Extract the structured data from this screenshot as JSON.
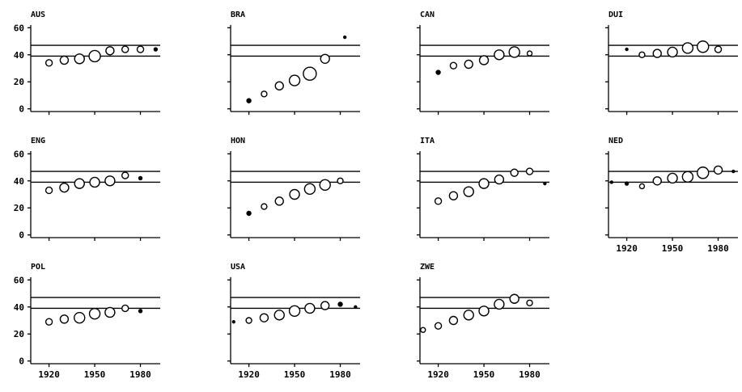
{
  "chart_data": {
    "type": "scatter",
    "description_style": "small multiples, bubble sizes vary, two horizontal reference lines per panel",
    "xlim": [
      1908,
      1993
    ],
    "ylim": [
      -2,
      62
    ],
    "x_ticks": [
      1920,
      1950,
      1980
    ],
    "x_tick_labels": [
      "1920",
      "1950",
      "1980"
    ],
    "y_ticks": [
      0,
      20,
      40,
      60
    ],
    "y_tick_labels": [
      "0",
      "20",
      "40",
      "60"
    ],
    "reference_lines": [
      47,
      39
    ],
    "grid": false,
    "legend": "none",
    "panels": [
      {
        "title": "AUS",
        "points": [
          {
            "x": 1920,
            "y": 34,
            "s": 4
          },
          {
            "x": 1930,
            "y": 36,
            "s": 5
          },
          {
            "x": 1940,
            "y": 37,
            "s": 6
          },
          {
            "x": 1950,
            "y": 39,
            "s": 7
          },
          {
            "x": 1960,
            "y": 43,
            "s": 5
          },
          {
            "x": 1970,
            "y": 44,
            "s": 4
          },
          {
            "x": 1980,
            "y": 44,
            "s": 4
          },
          {
            "x": 1990,
            "y": 44,
            "s": 2
          }
        ]
      },
      {
        "title": "BRA",
        "points": [
          {
            "x": 1920,
            "y": 6,
            "s": 2.5
          },
          {
            "x": 1930,
            "y": 11,
            "s": 3.5
          },
          {
            "x": 1940,
            "y": 17,
            "s": 5
          },
          {
            "x": 1950,
            "y": 21,
            "s": 6.5
          },
          {
            "x": 1960,
            "y": 26,
            "s": 8
          },
          {
            "x": 1970,
            "y": 37,
            "s": 5.5
          },
          {
            "x": 1983,
            "y": 53,
            "s": 1.5
          }
        ]
      },
      {
        "title": "CAN",
        "points": [
          {
            "x": 1920,
            "y": 27,
            "s": 2.5
          },
          {
            "x": 1930,
            "y": 32,
            "s": 4
          },
          {
            "x": 1940,
            "y": 33,
            "s": 5
          },
          {
            "x": 1950,
            "y": 36,
            "s": 5.5
          },
          {
            "x": 1960,
            "y": 40,
            "s": 6
          },
          {
            "x": 1970,
            "y": 42,
            "s": 6.5
          },
          {
            "x": 1980,
            "y": 41,
            "s": 3
          }
        ]
      },
      {
        "title": "DUI",
        "points": [
          {
            "x": 1920,
            "y": 44,
            "s": 1.5
          },
          {
            "x": 1930,
            "y": 40,
            "s": 3.5
          },
          {
            "x": 1940,
            "y": 41,
            "s": 5
          },
          {
            "x": 1950,
            "y": 42,
            "s": 6
          },
          {
            "x": 1960,
            "y": 45,
            "s": 6.5
          },
          {
            "x": 1970,
            "y": 46,
            "s": 7
          },
          {
            "x": 1980,
            "y": 44,
            "s": 4
          }
        ]
      },
      {
        "title": "ENG",
        "points": [
          {
            "x": 1920,
            "y": 33,
            "s": 4
          },
          {
            "x": 1930,
            "y": 35,
            "s": 5.5
          },
          {
            "x": 1940,
            "y": 38,
            "s": 6
          },
          {
            "x": 1950,
            "y": 39,
            "s": 6
          },
          {
            "x": 1960,
            "y": 40,
            "s": 6
          },
          {
            "x": 1970,
            "y": 44,
            "s": 4
          },
          {
            "x": 1980,
            "y": 42,
            "s": 2
          }
        ]
      },
      {
        "title": "HON",
        "points": [
          {
            "x": 1920,
            "y": 16,
            "s": 2.5
          },
          {
            "x": 1930,
            "y": 21,
            "s": 3.5
          },
          {
            "x": 1940,
            "y": 25,
            "s": 5
          },
          {
            "x": 1950,
            "y": 30,
            "s": 6
          },
          {
            "x": 1960,
            "y": 34,
            "s": 6.5
          },
          {
            "x": 1970,
            "y": 37,
            "s": 6.5
          },
          {
            "x": 1980,
            "y": 40,
            "s": 3.5
          }
        ]
      },
      {
        "title": "ITA",
        "points": [
          {
            "x": 1920,
            "y": 25,
            "s": 4
          },
          {
            "x": 1930,
            "y": 29,
            "s": 5
          },
          {
            "x": 1940,
            "y": 32,
            "s": 6
          },
          {
            "x": 1950,
            "y": 38,
            "s": 6
          },
          {
            "x": 1960,
            "y": 41,
            "s": 5.5
          },
          {
            "x": 1970,
            "y": 46,
            "s": 4.5
          },
          {
            "x": 1980,
            "y": 47,
            "s": 4
          },
          {
            "x": 1990,
            "y": 38,
            "s": 1.5
          }
        ]
      },
      {
        "title": "NED",
        "points": [
          {
            "x": 1910,
            "y": 39,
            "s": 1.5
          },
          {
            "x": 1920,
            "y": 38,
            "s": 2
          },
          {
            "x": 1930,
            "y": 36,
            "s": 3
          },
          {
            "x": 1940,
            "y": 40,
            "s": 5
          },
          {
            "x": 1950,
            "y": 42,
            "s": 6
          },
          {
            "x": 1960,
            "y": 43,
            "s": 6.5
          },
          {
            "x": 1970,
            "y": 46,
            "s": 7
          },
          {
            "x": 1980,
            "y": 48,
            "s": 5
          },
          {
            "x": 1990,
            "y": 47,
            "s": 1.5
          }
        ]
      },
      {
        "title": "POL",
        "points": [
          {
            "x": 1920,
            "y": 29,
            "s": 4
          },
          {
            "x": 1930,
            "y": 31,
            "s": 5
          },
          {
            "x": 1940,
            "y": 32,
            "s": 6.5
          },
          {
            "x": 1950,
            "y": 35,
            "s": 6.5
          },
          {
            "x": 1960,
            "y": 36,
            "s": 6
          },
          {
            "x": 1970,
            "y": 39,
            "s": 4
          },
          {
            "x": 1980,
            "y": 37,
            "s": 2
          }
        ]
      },
      {
        "title": "USA",
        "points": [
          {
            "x": 1910,
            "y": 29,
            "s": 1.5
          },
          {
            "x": 1920,
            "y": 30,
            "s": 3.5
          },
          {
            "x": 1930,
            "y": 32,
            "s": 5
          },
          {
            "x": 1940,
            "y": 34,
            "s": 6
          },
          {
            "x": 1950,
            "y": 37,
            "s": 6.5
          },
          {
            "x": 1960,
            "y": 39,
            "s": 6
          },
          {
            "x": 1970,
            "y": 41,
            "s": 5
          },
          {
            "x": 1980,
            "y": 42,
            "s": 2.5
          },
          {
            "x": 1990,
            "y": 40,
            "s": 1.5
          }
        ]
      },
      {
        "title": "ZWE",
        "points": [
          {
            "x": 1910,
            "y": 23,
            "s": 3
          },
          {
            "x": 1920,
            "y": 26,
            "s": 4
          },
          {
            "x": 1930,
            "y": 30,
            "s": 5
          },
          {
            "x": 1940,
            "y": 34,
            "s": 6
          },
          {
            "x": 1950,
            "y": 37,
            "s": 6
          },
          {
            "x": 1960,
            "y": 42,
            "s": 6
          },
          {
            "x": 1970,
            "y": 46,
            "s": 5.5
          },
          {
            "x": 1980,
            "y": 43,
            "s": 3.5
          }
        ]
      }
    ]
  }
}
